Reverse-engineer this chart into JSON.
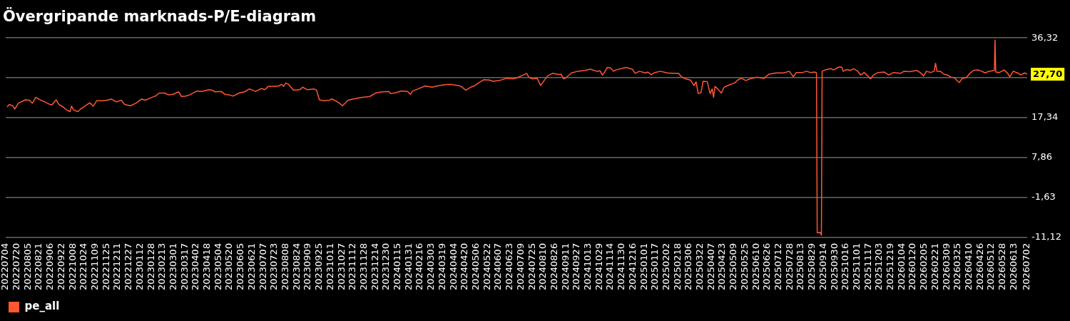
{
  "chart_data": {
    "type": "line",
    "title": "Övergripande marknads-P/E-diagram",
    "x": [
      "2022-07-06",
      "2022-07-09",
      "2022-07-14",
      "2022-07-17",
      "2022-07-22",
      "2022-08-01",
      "2022-08-07",
      "2022-08-11",
      "2022-08-16",
      "2022-08-22",
      "2022-08-29",
      "2022-09-05",
      "2022-09-08",
      "2022-09-14",
      "2022-09-18",
      "2022-09-24",
      "2022-09-29",
      "2022-10-04",
      "2022-10-06",
      "2022-10-09",
      "2022-10-15",
      "2022-10-19",
      "2022-10-26",
      "2022-11-01",
      "2022-11-06",
      "2022-11-11",
      "2022-11-19",
      "2022-11-26",
      "2022-12-02",
      "2022-12-09",
      "2022-12-16",
      "2022-12-21",
      "2022-12-29",
      "2023-01-06",
      "2023-01-14",
      "2023-01-19",
      "2023-01-26",
      "2023-02-03",
      "2023-02-08",
      "2023-02-16",
      "2023-02-21",
      "2023-02-28",
      "2023-03-08",
      "2023-03-12",
      "2023-03-18",
      "2023-03-24",
      "2023-04-03",
      "2023-04-10",
      "2023-04-20",
      "2023-04-25",
      "2023-04-29",
      "2023-05-08",
      "2023-05-13",
      "2023-05-19",
      "2023-05-25",
      "2023-06-02",
      "2023-06-10",
      "2023-06-17",
      "2023-06-26",
      "2023-07-04",
      "2023-07-09",
      "2023-07-14",
      "2023-07-23",
      "2023-07-29",
      "2023-08-02",
      "2023-08-05",
      "2023-08-08",
      "2023-08-12",
      "2023-08-19",
      "2023-08-28",
      "2023-09-01",
      "2023-09-08",
      "2023-09-17",
      "2023-09-21",
      "2023-09-25",
      "2023-10-02",
      "2023-10-09",
      "2023-10-13",
      "2023-10-21",
      "2023-10-28",
      "2023-11-05",
      "2023-11-15",
      "2023-11-25",
      "2023-12-06",
      "2023-12-14",
      "2023-12-23",
      "2024-01-02",
      "2024-01-05",
      "2024-01-12",
      "2024-01-20",
      "2024-01-29",
      "2024-02-02",
      "2024-02-05",
      "2024-02-13",
      "2024-02-23",
      "2024-03-04",
      "2024-03-11",
      "2024-03-22",
      "2024-03-30",
      "2024-04-11",
      "2024-04-16",
      "2024-04-21",
      "2024-04-28",
      "2024-05-03",
      "2024-05-09",
      "2024-05-17",
      "2024-05-25",
      "2024-05-30",
      "2024-06-08",
      "2024-06-18",
      "2024-06-28",
      "2024-07-04",
      "2024-07-12",
      "2024-07-17",
      "2024-07-20",
      "2024-07-25",
      "2024-08-01",
      "2024-08-06",
      "2024-08-11",
      "2024-08-16",
      "2024-08-23",
      "2024-09-01",
      "2024-09-04",
      "2024-09-08",
      "2024-09-13",
      "2024-09-19",
      "2024-09-28",
      "2024-10-08",
      "2024-10-16",
      "2024-10-25",
      "2024-10-30",
      "2024-11-02",
      "2024-11-05",
      "2024-11-09",
      "2024-11-14",
      "2024-11-18",
      "2024-11-21",
      "2024-12-06",
      "2024-12-15",
      "2024-12-19",
      "2024-12-25",
      "2025-01-03",
      "2025-01-06",
      "2025-01-11",
      "2025-01-16",
      "2025-01-24",
      "2025-02-03",
      "2025-02-11",
      "2025-02-19",
      "2025-02-23",
      "2025-03-01",
      "2025-03-08",
      "2025-03-13",
      "2025-03-16",
      "2025-03-19",
      "2025-03-23",
      "2025-03-26",
      "2025-04-01",
      "2025-04-05",
      "2025-04-08",
      "2025-04-10",
      "2025-04-12",
      "2025-04-16",
      "2025-04-21",
      "2025-04-25",
      "2025-05-03",
      "2025-05-10",
      "2025-05-15",
      "2025-05-20",
      "2025-05-26",
      "2025-06-01",
      "2025-06-11",
      "2025-06-21",
      "2025-06-28",
      "2025-07-08",
      "2025-07-19",
      "2025-07-27",
      "2025-08-02",
      "2025-08-06",
      "2025-08-15",
      "2025-08-21",
      "2025-08-26",
      "2025-09-02",
      "2025-09-04",
      "2025-09-05",
      "2025-09-09",
      "2025-09-11",
      "2025-09-12",
      "2025-09-18",
      "2025-09-25",
      "2025-09-28",
      "2025-10-06",
      "2025-10-10",
      "2025-10-12",
      "2025-10-17",
      "2025-10-22",
      "2025-10-27",
      "2025-11-02",
      "2025-11-06",
      "2025-11-11",
      "2025-11-16",
      "2025-11-20",
      "2025-11-25",
      "2025-12-01",
      "2025-12-10",
      "2025-12-16",
      "2025-12-23",
      "2026-01-02",
      "2026-01-07",
      "2026-01-15",
      "2026-01-25",
      "2026-01-30",
      "2026-02-04",
      "2026-02-08",
      "2026-02-14",
      "2026-02-19",
      "2026-02-21",
      "2026-02-23",
      "2026-02-28",
      "2026-03-05",
      "2026-03-10",
      "2026-03-15",
      "2026-03-20",
      "2026-03-23",
      "2026-03-27",
      "2026-03-31",
      "2026-04-06",
      "2026-04-11",
      "2026-04-16",
      "2026-04-23",
      "2026-04-28",
      "2026-05-03",
      "2026-05-08",
      "2026-05-13",
      "2026-05-16",
      "2026-05-17",
      "2026-05-18",
      "2026-05-23",
      "2026-05-30",
      "2026-06-04",
      "2026-06-07",
      "2026-06-12",
      "2026-06-18",
      "2026-06-23",
      "2026-06-28",
      "2026-07-02"
    ],
    "series": [
      {
        "name": "pe_all",
        "color": "#ff5733",
        "values": [
          19.9,
          20.5,
          20.2,
          19.4,
          20.8,
          21.6,
          21.5,
          20.8,
          22.2,
          21.6,
          21.1,
          20.5,
          20.4,
          21.6,
          20.5,
          19.9,
          19.2,
          18.8,
          20.1,
          19.2,
          18.8,
          19.4,
          20.2,
          20.9,
          20.1,
          21.4,
          21.4,
          21.5,
          21.8,
          21.1,
          21.5,
          20.5,
          20.2,
          20.8,
          21.8,
          21.5,
          22.0,
          22.5,
          23.2,
          23.2,
          22.8,
          22.9,
          23.5,
          22.4,
          22.5,
          22.8,
          23.7,
          23.6,
          24.0,
          23.9,
          23.5,
          23.6,
          22.9,
          22.8,
          22.5,
          23.2,
          23.5,
          24.2,
          23.6,
          24.3,
          24.0,
          24.8,
          24.8,
          24.9,
          25.3,
          24.8,
          25.6,
          25.3,
          23.9,
          24.0,
          24.6,
          24.0,
          24.2,
          23.9,
          21.6,
          21.4,
          21.5,
          21.8,
          21.1,
          20.2,
          21.5,
          21.9,
          22.2,
          22.4,
          23.2,
          23.5,
          23.6,
          23.1,
          23.3,
          23.7,
          23.6,
          22.9,
          23.7,
          24.2,
          24.9,
          24.6,
          24.9,
          25.2,
          25.3,
          25.0,
          24.6,
          23.9,
          24.6,
          24.9,
          25.6,
          26.4,
          26.3,
          26.0,
          26.2,
          26.7,
          26.6,
          26.9,
          27.5,
          27.9,
          27.0,
          26.6,
          26.7,
          25.0,
          26.2,
          27.3,
          27.9,
          27.6,
          27.7,
          26.6,
          27.1,
          28.0,
          28.4,
          28.6,
          28.9,
          28.4,
          28.5,
          27.5,
          28.1,
          29.3,
          29.2,
          28.4,
          28.7,
          29.3,
          28.9,
          27.9,
          28.4,
          28.0,
          28.2,
          27.6,
          28.1,
          28.4,
          28.0,
          27.9,
          27.9,
          27.1,
          26.6,
          26.3,
          25.0,
          25.9,
          23.1,
          23.3,
          26.0,
          25.9,
          23.1,
          24.2,
          22.2,
          24.8,
          24.2,
          23.2,
          24.6,
          25.2,
          25.6,
          26.4,
          26.7,
          26.2,
          26.6,
          27.0,
          26.7,
          27.7,
          28.0,
          28.0,
          28.4,
          27.1,
          28.1,
          28.1,
          28.4,
          28.1,
          28.2,
          28.0,
          -10.0,
          -9.9,
          -10.6,
          28.4,
          28.8,
          29.0,
          28.7,
          29.4,
          29.4,
          28.4,
          28.8,
          28.6,
          29.0,
          28.4,
          27.5,
          28.1,
          27.3,
          26.6,
          27.6,
          28.1,
          28.2,
          27.5,
          28.1,
          27.9,
          28.4,
          28.3,
          28.6,
          28.1,
          27.3,
          28.4,
          28.1,
          28.4,
          30.3,
          28.4,
          28.4,
          27.7,
          27.5,
          27.0,
          26.9,
          26.3,
          25.7,
          26.7,
          26.9,
          27.9,
          28.6,
          28.7,
          28.4,
          28.0,
          28.4,
          28.5,
          28.6,
          35.8,
          28.2,
          28.1,
          28.7,
          27.9,
          27.1,
          28.4,
          28.0,
          27.5,
          28.0,
          27.7
        ]
      }
    ],
    "xlim": [
      "2022-07-04",
      "2026-07-02"
    ],
    "xticks": [
      {
        "value": "2022-07-04",
        "label": "20220704"
      },
      {
        "value": "2022-07-20",
        "label": "20220720"
      },
      {
        "value": "2022-08-05",
        "label": "20220805"
      },
      {
        "value": "2022-08-21",
        "label": "20220821"
      },
      {
        "value": "2022-09-06",
        "label": "20220906"
      },
      {
        "value": "2022-09-22",
        "label": "20220922"
      },
      {
        "value": "2022-10-08",
        "label": "20221008"
      },
      {
        "value": "2022-10-24",
        "label": "20221024"
      },
      {
        "value": "2022-11-09",
        "label": "20221109"
      },
      {
        "value": "2022-11-25",
        "label": "20221125"
      },
      {
        "value": "2022-12-11",
        "label": "20221211"
      },
      {
        "value": "2022-12-27",
        "label": "20221227"
      },
      {
        "value": "2023-01-12",
        "label": "20230112"
      },
      {
        "value": "2023-01-28",
        "label": "20230128"
      },
      {
        "value": "2023-02-13",
        "label": "20230213"
      },
      {
        "value": "2023-03-01",
        "label": "20230301"
      },
      {
        "value": "2023-03-17",
        "label": "20230317"
      },
      {
        "value": "2023-04-02",
        "label": "20230402"
      },
      {
        "value": "2023-04-18",
        "label": "20230418"
      },
      {
        "value": "2023-05-04",
        "label": "20230504"
      },
      {
        "value": "2023-05-20",
        "label": "20230520"
      },
      {
        "value": "2023-06-05",
        "label": "20230605"
      },
      {
        "value": "2023-06-21",
        "label": "20230621"
      },
      {
        "value": "2023-07-07",
        "label": "20230707"
      },
      {
        "value": "2023-07-23",
        "label": "20230723"
      },
      {
        "value": "2023-08-08",
        "label": "20230808"
      },
      {
        "value": "2023-08-24",
        "label": "20230824"
      },
      {
        "value": "2023-09-09",
        "label": "20230909"
      },
      {
        "value": "2023-09-25",
        "label": "20230925"
      },
      {
        "value": "2023-10-11",
        "label": "20231011"
      },
      {
        "value": "2023-10-27",
        "label": "20231027"
      },
      {
        "value": "2023-11-12",
        "label": "20231112"
      },
      {
        "value": "2023-11-28",
        "label": "20231128"
      },
      {
        "value": "2023-12-14",
        "label": "20231214"
      },
      {
        "value": "2023-12-30",
        "label": "20231230"
      },
      {
        "value": "2024-01-15",
        "label": "20240115"
      },
      {
        "value": "2024-01-31",
        "label": "20240131"
      },
      {
        "value": "2024-02-16",
        "label": "20240216"
      },
      {
        "value": "2024-03-03",
        "label": "20240303"
      },
      {
        "value": "2024-03-19",
        "label": "20240319"
      },
      {
        "value": "2024-04-04",
        "label": "20240404"
      },
      {
        "value": "2024-04-20",
        "label": "20240420"
      },
      {
        "value": "2024-05-06",
        "label": "20240506"
      },
      {
        "value": "2024-05-22",
        "label": "20240522"
      },
      {
        "value": "2024-06-07",
        "label": "20240607"
      },
      {
        "value": "2024-06-23",
        "label": "20240623"
      },
      {
        "value": "2024-07-09",
        "label": "20240709"
      },
      {
        "value": "2024-07-25",
        "label": "20240725"
      },
      {
        "value": "2024-08-10",
        "label": "20240810"
      },
      {
        "value": "2024-08-26",
        "label": "20240826"
      },
      {
        "value": "2024-09-11",
        "label": "20240911"
      },
      {
        "value": "2024-09-27",
        "label": "20240927"
      },
      {
        "value": "2024-10-13",
        "label": "20241013"
      },
      {
        "value": "2024-10-29",
        "label": "20241029"
      },
      {
        "value": "2024-11-14",
        "label": "20241114"
      },
      {
        "value": "2024-11-30",
        "label": "20241130"
      },
      {
        "value": "2024-12-16",
        "label": "20241216"
      },
      {
        "value": "2025-01-01",
        "label": "20250101"
      },
      {
        "value": "2025-01-17",
        "label": "20250117"
      },
      {
        "value": "2025-02-02",
        "label": "20250202"
      },
      {
        "value": "2025-02-18",
        "label": "20250218"
      },
      {
        "value": "2025-03-06",
        "label": "20250306"
      },
      {
        "value": "2025-03-22",
        "label": "20250322"
      },
      {
        "value": "2025-04-07",
        "label": "20250407"
      },
      {
        "value": "2025-04-23",
        "label": "20250423"
      },
      {
        "value": "2025-05-09",
        "label": "20250509"
      },
      {
        "value": "2025-05-25",
        "label": "20250525"
      },
      {
        "value": "2025-06-10",
        "label": "20250610"
      },
      {
        "value": "2025-06-26",
        "label": "20250626"
      },
      {
        "value": "2025-07-12",
        "label": "20250712"
      },
      {
        "value": "2025-07-28",
        "label": "20250728"
      },
      {
        "value": "2025-08-13",
        "label": "20250813"
      },
      {
        "value": "2025-08-29",
        "label": "20250829"
      },
      {
        "value": "2025-09-14",
        "label": "20250914"
      },
      {
        "value": "2025-09-30",
        "label": "20250930"
      },
      {
        "value": "2025-10-16",
        "label": "20251016"
      },
      {
        "value": "2025-11-01",
        "label": "20251101"
      },
      {
        "value": "2025-11-17",
        "label": "20251117"
      },
      {
        "value": "2025-12-03",
        "label": "20251203"
      },
      {
        "value": "2025-12-19",
        "label": "20251219"
      },
      {
        "value": "2026-01-04",
        "label": "20260104"
      },
      {
        "value": "2026-01-20",
        "label": "20260120"
      },
      {
        "value": "2026-02-05",
        "label": "20260205"
      },
      {
        "value": "2026-02-21",
        "label": "20260221"
      },
      {
        "value": "2026-03-09",
        "label": "20260309"
      },
      {
        "value": "2026-03-25",
        "label": "20260325"
      },
      {
        "value": "2026-04-10",
        "label": "20260410"
      },
      {
        "value": "2026-04-26",
        "label": "20260426"
      },
      {
        "value": "2026-05-12",
        "label": "20260512"
      },
      {
        "value": "2026-05-28",
        "label": "20260528"
      },
      {
        "value": "2026-06-13",
        "label": "20260613"
      },
      {
        "value": "2026-07-02",
        "label": "20260702"
      }
    ],
    "ylim": [
      -11.12,
      36.32
    ],
    "yticks": [
      {
        "value": -11.12,
        "label": "-11,12"
      },
      {
        "value": -1.63,
        "label": "-1,63"
      },
      {
        "value": 7.86,
        "label": "7,86"
      },
      {
        "value": 17.34,
        "label": "17,34"
      },
      {
        "value": 26.83,
        "label": null
      },
      {
        "value": 36.32,
        "label": "36,32"
      }
    ],
    "annotations": [
      {
        "text": "27,70",
        "x": "2026-07-02",
        "y": 27.7
      }
    ],
    "grid": "y",
    "legend": "bottom left"
  }
}
